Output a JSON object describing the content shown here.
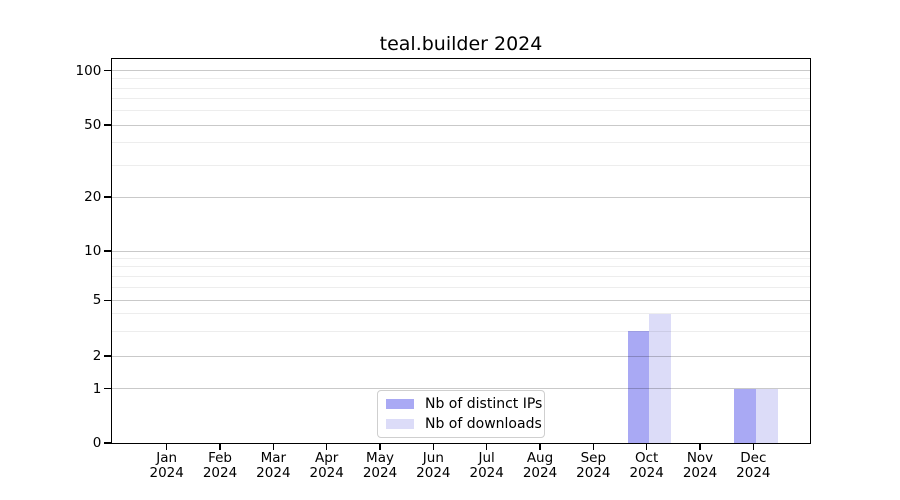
{
  "chart_data": {
    "type": "bar",
    "title": "teal.builder 2024",
    "categories": [
      "Jan",
      "Feb",
      "Mar",
      "Apr",
      "May",
      "Jun",
      "Jul",
      "Aug",
      "Sep",
      "Oct",
      "Nov",
      "Dec"
    ],
    "x_year_label": "2024",
    "series": [
      {
        "name": "Nb of distinct IPs",
        "color": "#a9a9f4",
        "values": [
          0,
          0,
          0,
          0,
          0,
          0,
          0,
          0,
          0,
          3,
          0,
          1
        ]
      },
      {
        "name": "Nb of downloads",
        "color": "#dcdcf8",
        "values": [
          0,
          0,
          0,
          0,
          0,
          0,
          0,
          0,
          0,
          4,
          0,
          1
        ]
      }
    ],
    "xlabel": "",
    "ylabel": "",
    "y_axis": {
      "scale": "log-like with zero baseline",
      "ticks": [
        0,
        1,
        2,
        5,
        10,
        20,
        50,
        100
      ],
      "minor_ticks": [
        3,
        4,
        6,
        7,
        8,
        9,
        30,
        40,
        60,
        70,
        80,
        90
      ],
      "ylim": [
        0,
        130
      ]
    },
    "grid": "major and minor horizontal gridlines, drawn over bars",
    "legend_position": "lower center inside plot"
  },
  "colors": {
    "bar_distinct_ips": "#a9a9f4",
    "bar_downloads": "#dcdcf8",
    "major_grid": "#c9c9c9",
    "minor_grid": "#efefef",
    "spine": "#000000",
    "legend_border": "#cfcfcf"
  }
}
